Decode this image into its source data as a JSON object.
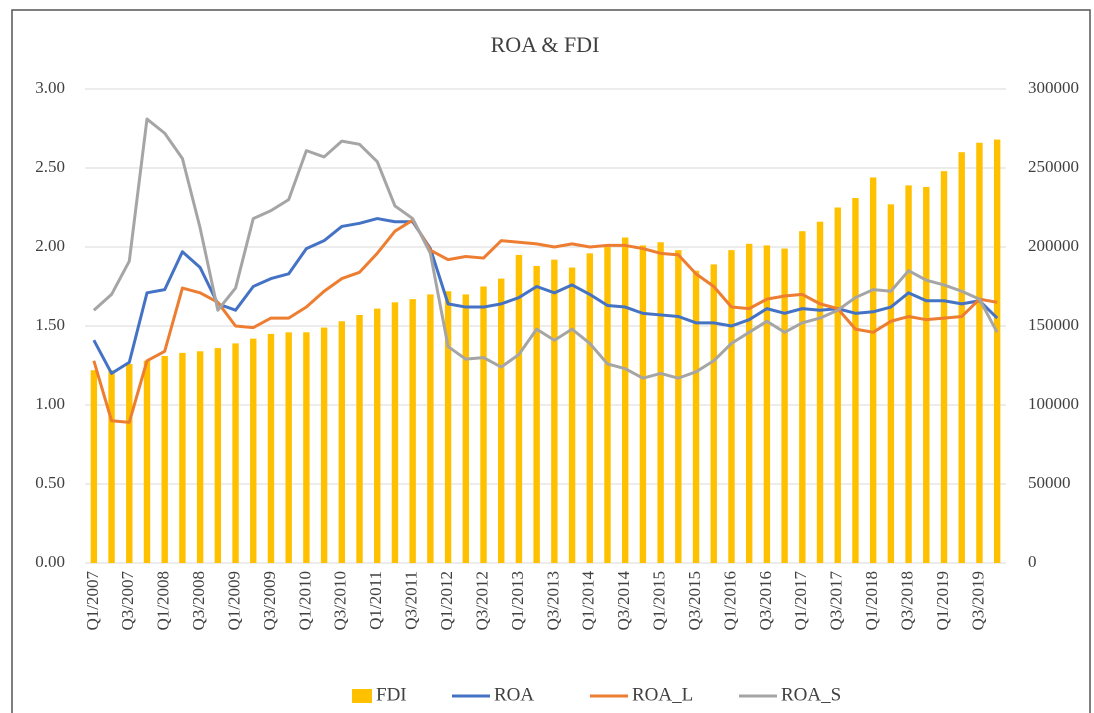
{
  "chart_data": {
    "type": "combo",
    "title": "ROA & FDI",
    "categories": [
      "Q1/2007",
      null,
      "Q3/2007",
      null,
      "Q1/2008",
      null,
      "Q3/2008",
      null,
      "Q1/2009",
      null,
      "Q3/2009",
      null,
      "Q1/2010",
      null,
      "Q3/2010",
      null,
      "Q1/2011",
      null,
      "Q3/2011",
      null,
      "Q1/2012",
      null,
      "Q3/2012",
      null,
      "Q1/2013",
      null,
      "Q3/2013",
      null,
      "Q1/2014",
      null,
      "Q3/2014",
      null,
      "Q1/2015",
      null,
      "Q3/2015",
      null,
      "Q1/2016",
      null,
      "Q3/2016",
      null,
      "Q1/2017",
      null,
      "Q3/2017",
      null,
      "Q1/2018",
      null,
      "Q3/2018",
      null,
      "Q1/2019",
      null,
      "Q3/2019",
      null
    ],
    "series": [
      {
        "name": "FDI",
        "type": "bar",
        "axis": "y2",
        "color": "#ffc000",
        "values": [
          122000,
          122000,
          126000,
          128000,
          131000,
          133000,
          134000,
          136000,
          139000,
          142000,
          145000,
          146000,
          146000,
          149000,
          153000,
          157000,
          161000,
          165000,
          167000,
          170000,
          172000,
          170000,
          175000,
          180000,
          195000,
          188000,
          192000,
          187000,
          196000,
          200000,
          206000,
          201000,
          203000,
          198000,
          185000,
          189000,
          198000,
          202000,
          201000,
          199000,
          210000,
          216000,
          225000,
          231000,
          244000,
          227000,
          239000,
          238000,
          248000,
          260000,
          266000,
          268000
        ]
      },
      {
        "name": "ROA",
        "type": "line",
        "color": "#4472c4",
        "values": [
          1.41,
          1.2,
          1.27,
          1.71,
          1.73,
          1.97,
          1.87,
          1.64,
          1.6,
          1.75,
          1.8,
          1.83,
          1.99,
          2.04,
          2.13,
          2.15,
          2.18,
          2.16,
          2.16,
          1.99,
          1.64,
          1.62,
          1.62,
          1.64,
          1.68,
          1.75,
          1.71,
          1.76,
          1.7,
          1.63,
          1.62,
          1.58,
          1.57,
          1.56,
          1.52,
          1.52,
          1.5,
          1.54,
          1.61,
          1.58,
          1.61,
          1.6,
          1.61,
          1.58,
          1.59,
          1.62,
          1.71,
          1.66,
          1.66,
          1.64,
          1.66,
          1.55
        ]
      },
      {
        "name": "ROA_L",
        "type": "line",
        "color": "#ed7d31",
        "values": [
          1.28,
          0.9,
          0.89,
          1.28,
          1.34,
          1.74,
          1.71,
          1.65,
          1.5,
          1.49,
          1.55,
          1.55,
          1.62,
          1.72,
          1.8,
          1.84,
          1.96,
          2.1,
          2.17,
          1.98,
          1.92,
          1.94,
          1.93,
          2.04,
          2.03,
          2.02,
          2.0,
          2.02,
          2.0,
          2.01,
          2.01,
          1.99,
          1.96,
          1.95,
          1.83,
          1.75,
          1.62,
          1.61,
          1.67,
          1.69,
          1.7,
          1.64,
          1.61,
          1.48,
          1.46,
          1.53,
          1.56,
          1.54,
          1.55,
          1.56,
          1.67,
          1.65
        ]
      },
      {
        "name": "ROA_S",
        "type": "line",
        "color": "#a5a5a5",
        "values": [
          1.6,
          1.7,
          1.91,
          2.81,
          2.72,
          2.56,
          2.12,
          1.6,
          1.74,
          2.18,
          2.23,
          2.3,
          2.61,
          2.57,
          2.67,
          2.65,
          2.54,
          2.26,
          2.18,
          1.96,
          1.37,
          1.29,
          1.3,
          1.24,
          1.32,
          1.48,
          1.41,
          1.48,
          1.39,
          1.26,
          1.23,
          1.17,
          1.2,
          1.17,
          1.21,
          1.28,
          1.39,
          1.46,
          1.53,
          1.46,
          1.52,
          1.55,
          1.6,
          1.68,
          1.73,
          1.72,
          1.85,
          1.79,
          1.76,
          1.72,
          1.67,
          1.46
        ]
      }
    ],
    "ylim": [
      0,
      3
    ],
    "yticks": [
      {
        "value": 0,
        "label": "0.00"
      },
      {
        "value": 0.5,
        "label": "0.50"
      },
      {
        "value": 1,
        "label": "1.00"
      },
      {
        "value": 1.5,
        "label": "1.50"
      },
      {
        "value": 2,
        "label": "2.00"
      },
      {
        "value": 2.5,
        "label": "2.50"
      },
      {
        "value": 3,
        "label": "3.00"
      }
    ],
    "y2lim": [
      0,
      300000
    ],
    "y2ticks": [
      0,
      50000,
      100000,
      150000,
      200000,
      250000,
      300000
    ],
    "grid": true,
    "legend": "bottom"
  }
}
